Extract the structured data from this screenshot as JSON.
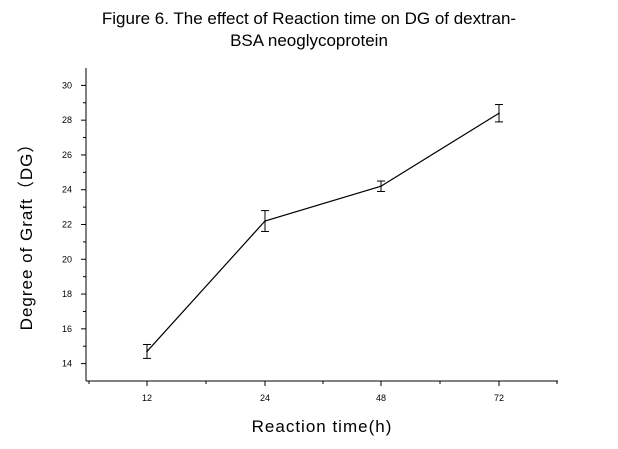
{
  "chart_data": {
    "type": "line",
    "title_lines": [
      "Figure 6. The effect of Reaction time on DG of dextran-",
      "BSA neoglycoprotein"
    ],
    "xlabel": "Reaction time(h)",
    "ylabel": "Degree of Graft（DG）",
    "categories": [
      "12",
      "24",
      "48",
      "72"
    ],
    "series": [
      {
        "values": [
          14.7,
          22.2,
          24.2,
          28.4
        ],
        "errors": [
          0.4,
          0.6,
          0.3,
          0.5
        ]
      }
    ],
    "ylim": [
      13,
      31
    ],
    "yticks": [
      14,
      16,
      18,
      20,
      22,
      24,
      26,
      28,
      30
    ],
    "ytick_labels": [
      "14",
      "16",
      "18",
      "20",
      "22",
      "24",
      "26",
      "28",
      "30"
    ],
    "grid": false,
    "legend": "none",
    "colors": {
      "line": "#000000"
    }
  }
}
